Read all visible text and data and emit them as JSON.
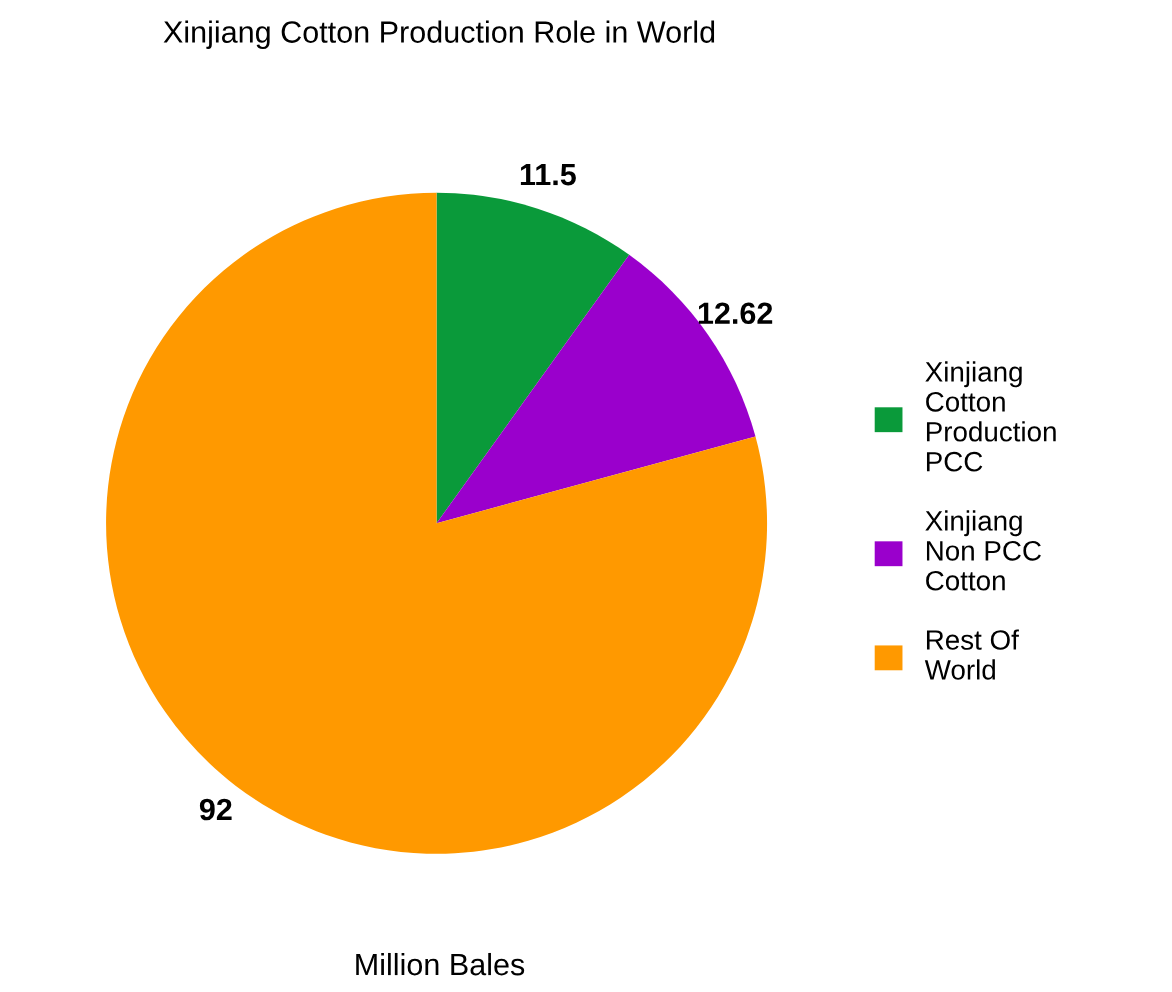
{
  "chart_data": {
    "type": "pie",
    "title": "Xinjiang Cotton Production Role in World",
    "xlabel": "Million Bales",
    "categories": [
      "Xinjiang Cotton Production PCC",
      "Xinjiang Non PCC Cotton",
      "Rest Of World"
    ],
    "values": [
      11.5,
      12.62,
      92
    ],
    "colors": [
      "#0a9a3a",
      "#9a00cc",
      "#ff9900"
    ],
    "data_labels": true,
    "legend": "right"
  }
}
